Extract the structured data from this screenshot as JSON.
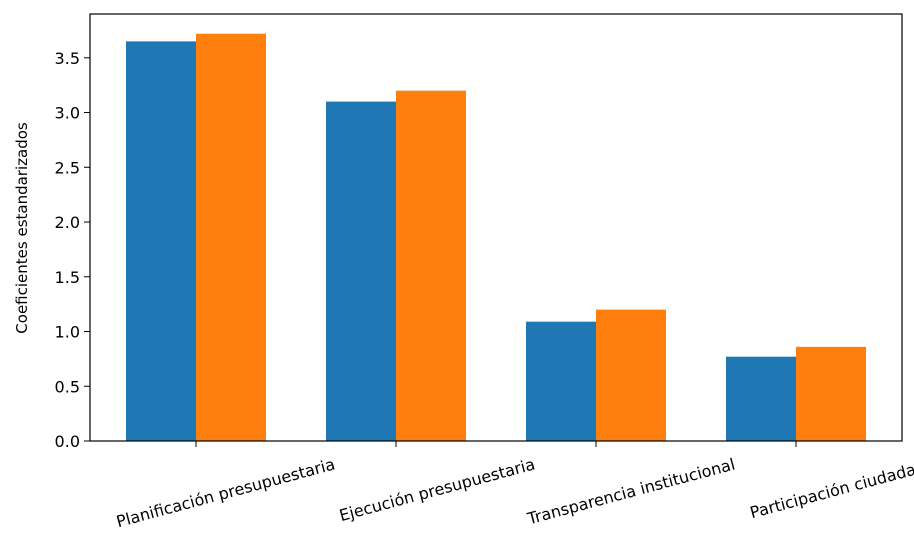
{
  "chart_data": {
    "type": "bar",
    "categories": [
      "Planificación presupuestaria",
      "Ejecución presupuestaria",
      "Transparencia institucional",
      "Participación ciudadana"
    ],
    "series": [
      {
        "values": [
          3.65,
          3.1,
          1.09,
          0.77
        ],
        "color": "#1f77b4"
      },
      {
        "values": [
          3.72,
          3.2,
          1.2,
          0.86
        ],
        "color": "#ff7f0e"
      }
    ],
    "title": "",
    "xlabel": "",
    "ylabel": "Coeficientes estandarizados",
    "ylim": [
      0,
      3.9
    ],
    "yticks": [
      "0.0",
      "0.5",
      "1.0",
      "1.5",
      "2.0",
      "2.5",
      "3.0",
      "3.5"
    ],
    "grid": false,
    "legend": "none"
  }
}
